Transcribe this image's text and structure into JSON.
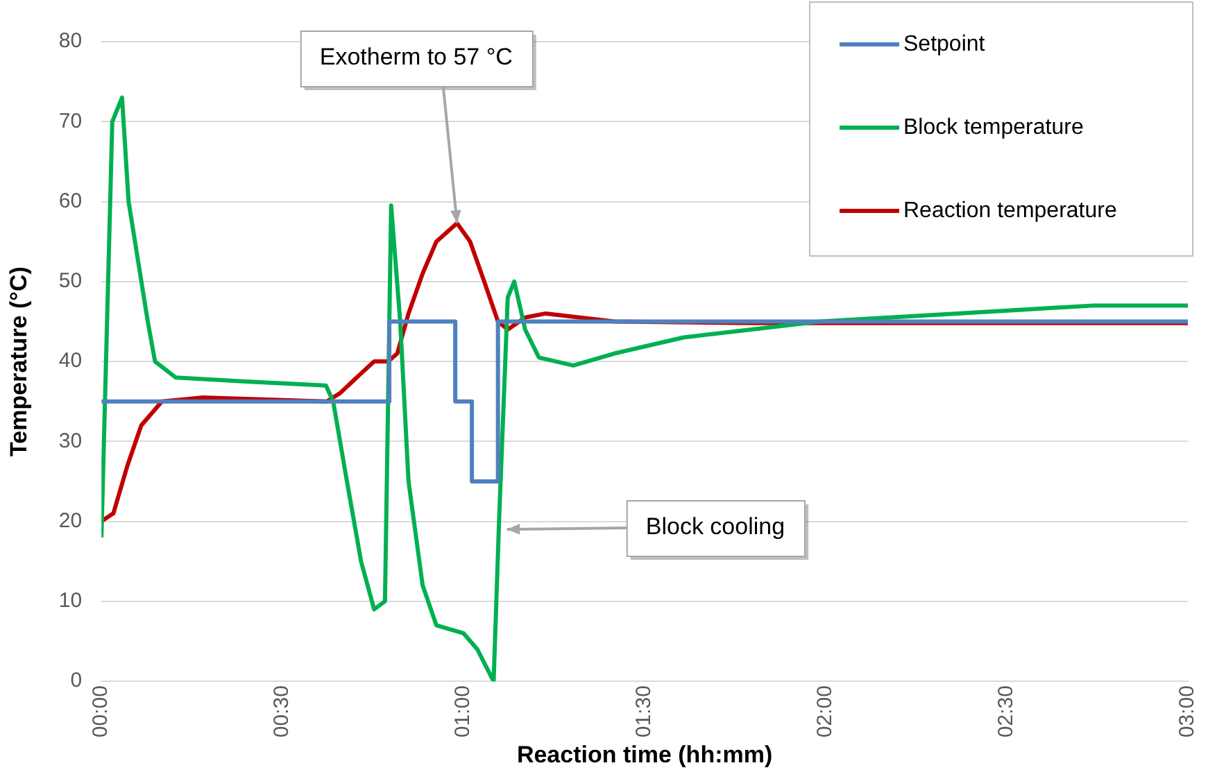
{
  "chart_data": {
    "type": "line",
    "xlabel": "Reaction time (hh:mm)",
    "ylabel": "Temperature (°C)",
    "xlim": [
      0,
      3
    ],
    "xticks": [
      {
        "value": 0,
        "label": "00:00"
      },
      {
        "value": 0.5,
        "label": "00:30"
      },
      {
        "value": 1,
        "label": "01:00"
      },
      {
        "value": 1.5,
        "label": "01:30"
      },
      {
        "value": 2,
        "label": "02:00"
      },
      {
        "value": 2.5,
        "label": "02:30"
      },
      {
        "value": 3,
        "label": "03:00"
      }
    ],
    "ylim": [
      0,
      80
    ],
    "yticks": [
      0,
      10,
      20,
      30,
      40,
      50,
      60,
      70,
      80
    ],
    "grid": "y",
    "legend": "top right",
    "series": [
      {
        "name": "Setpoint",
        "type": "step",
        "color": "#4f81bd",
        "x": [
          0,
          0.795,
          0.977,
          1.023,
          1.095,
          3
        ],
        "values": [
          35,
          45,
          35,
          25,
          45,
          45
        ]
      },
      {
        "name": "Block temperature",
        "type": "line",
        "color": "#00b050",
        "x": [
          0,
          0.03,
          0.057,
          0.075,
          0.128,
          0.148,
          0.205,
          0.4,
          0.62,
          0.64,
          0.678,
          0.717,
          0.753,
          0.783,
          0.8,
          0.825,
          0.848,
          0.887,
          0.925,
          0.962,
          1.0,
          1.038,
          1.083,
          1.098,
          1.122,
          1.14,
          1.17,
          1.208,
          1.303,
          1.417,
          1.607,
          1.795,
          1.983,
          2.175,
          2.363,
          2.55,
          2.742,
          3
        ],
        "values": [
          18,
          70,
          73,
          60,
          45,
          40,
          38,
          37.5,
          37,
          35,
          25,
          15,
          9,
          10,
          59.5,
          45,
          25,
          12,
          7,
          6.5,
          6,
          4,
          0,
          20,
          48,
          50,
          44,
          40.5,
          39.5,
          41,
          43,
          44,
          45,
          45.5,
          46,
          46.5,
          47,
          47
        ]
      },
      {
        "name": "Reaction temperature",
        "type": "line",
        "color": "#c00000",
        "x": [
          0,
          0.033,
          0.072,
          0.11,
          0.167,
          0.28,
          0.622,
          0.658,
          0.717,
          0.753,
          0.792,
          0.817,
          0.848,
          0.887,
          0.925,
          0.982,
          1.018,
          1.057,
          1.095,
          1.122,
          1.17,
          1.227,
          1.417,
          1.795,
          3
        ],
        "values": [
          20,
          21,
          27,
          32,
          35,
          35.5,
          35,
          36,
          38.5,
          40,
          40,
          41,
          46,
          51,
          55,
          57.3,
          55,
          50,
          45,
          44,
          45.5,
          46,
          45,
          44.8,
          44.8
        ]
      }
    ],
    "annotations": [
      {
        "text": "Exotherm to 57 °C",
        "x": 0.982,
        "y": 57.3
      },
      {
        "text": "Block cooling",
        "x": 1.12,
        "y": 19
      }
    ]
  }
}
